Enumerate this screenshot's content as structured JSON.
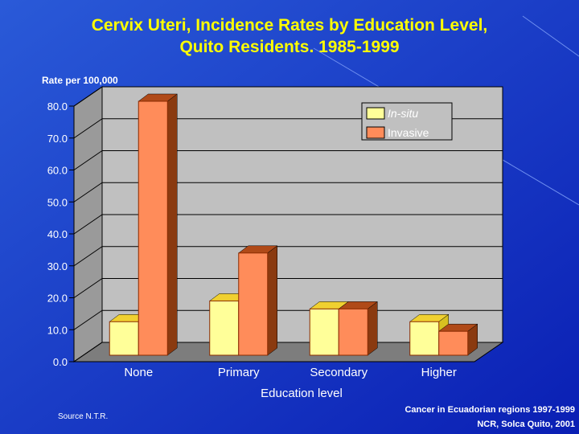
{
  "slide": {
    "title_line1": "Cervix Uteri, Incidence Rates by Education Level,",
    "title_line2": "Quito Residents. 1985-1999",
    "source": "Source N.T.R.",
    "credit_line1": "Cancer in Ecuadorian regions 1997-1999",
    "credit_line2": "NCR, Solca Quito, 2001"
  },
  "colors": {
    "background_gradient": [
      "#1a4fd0",
      "#0018a8"
    ],
    "title": "#ffff00",
    "insitu": "#ffff99",
    "invasive": "#ff8c5a"
  },
  "chart_data": {
    "type": "bar",
    "title": "Cervix Uteri, Incidence Rates by Education Level, Quito Residents. 1985-1999",
    "ylabel": "Rate per 100,000",
    "xlabel": "Education level",
    "categories": [
      "None",
      "Primary",
      "Secondary",
      "Higher"
    ],
    "series": [
      {
        "name": "In-situ",
        "values": [
          10.5,
          17.0,
          14.5,
          10.5
        ]
      },
      {
        "name": "Invasive",
        "values": [
          79.5,
          32.0,
          14.5,
          7.5
        ]
      }
    ],
    "ylim": [
      0,
      80
    ],
    "yticks": [
      "0.0",
      "10.0",
      "20.0",
      "30.0",
      "40.0",
      "50.0",
      "60.0",
      "70.0",
      "80.0"
    ],
    "legend_position": "top-right",
    "style": "3d-clustered-bar"
  }
}
